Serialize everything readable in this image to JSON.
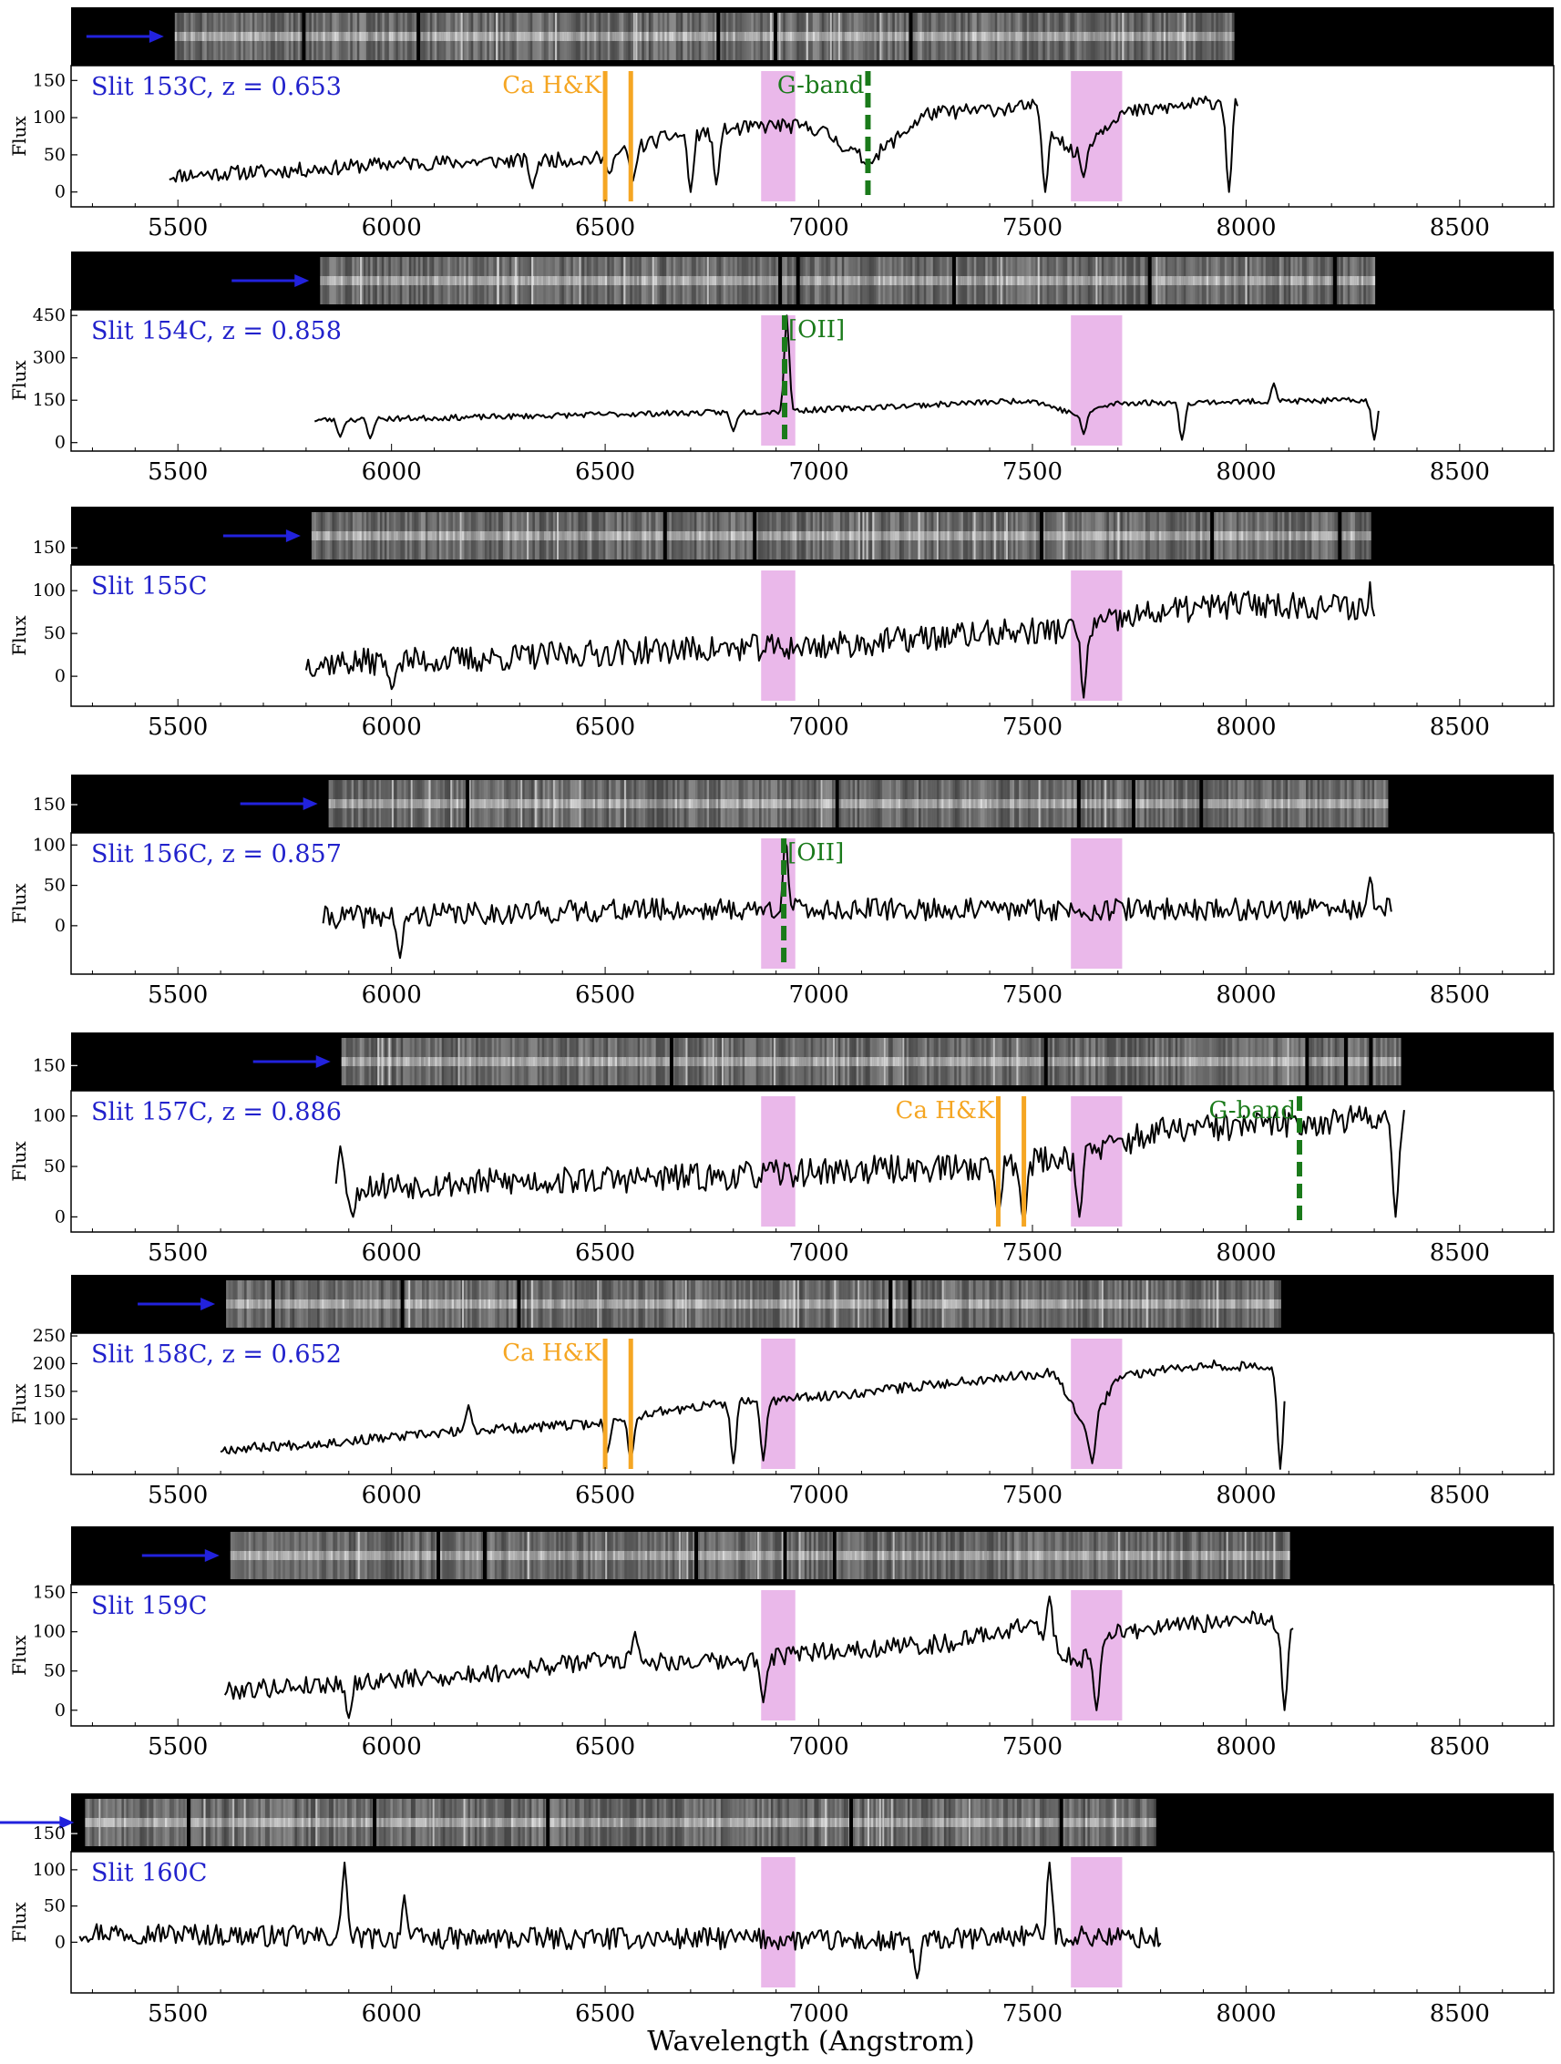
{
  "figure": {
    "xlabel": "Wavelength (Angstrom)",
    "ylabel": "Flux",
    "x_ticks": [
      5500,
      6000,
      6500,
      7000,
      7500,
      8000,
      8500
    ],
    "x_range": [
      5250,
      8720
    ],
    "shaded_regions": [
      [
        6865,
        6945
      ],
      [
        7590,
        7710
      ]
    ],
    "colors": {
      "shade": "#eab8ea",
      "arrow": "#2222dd",
      "label": "#2222cc",
      "ca_hk": "#f5a623",
      "feature_green": "#1a7a1a",
      "spectrum": "#000000",
      "strip": "#000000"
    }
  },
  "chart_data": [
    {
      "type": "line",
      "label": "Slit 153C, z = 0.653",
      "slit": "153C",
      "z": "0.653",
      "x_min": 5480,
      "x_max": 7980,
      "strip_start": 5480,
      "strip_end": 7980,
      "y_ticks": [
        0,
        50,
        100,
        150
      ],
      "ylim": [
        -20,
        170
      ],
      "ca_hk": [
        6500,
        6560
      ],
      "ca_label": "Ca H&K",
      "feature": {
        "name": "G-band",
        "x": 7115,
        "style": "dashed"
      },
      "anchors": [
        [
          5480,
          22
        ],
        [
          5800,
          30
        ],
        [
          6000,
          38
        ],
        [
          6300,
          42
        ],
        [
          6500,
          45
        ],
        [
          6650,
          75
        ],
        [
          6900,
          90
        ],
        [
          7000,
          85
        ],
        [
          7115,
          40
        ],
        [
          7250,
          105
        ],
        [
          7500,
          115
        ],
        [
          7600,
          50
        ],
        [
          7700,
          105
        ],
        [
          7980,
          125
        ]
      ],
      "dips": [
        [
          6330,
          5
        ],
        [
          6510,
          25
        ],
        [
          6565,
          15
        ],
        [
          6700,
          0
        ],
        [
          6760,
          10
        ],
        [
          7120,
          40
        ],
        [
          7530,
          0
        ],
        [
          7620,
          20
        ],
        [
          7960,
          0
        ]
      ],
      "peaks": [],
      "noise": 10,
      "seed": 11
    },
    {
      "type": "line",
      "label": "Slit 154C, z = 0.858",
      "slit": "154C",
      "z": "0.858",
      "x_min": 5820,
      "x_max": 8310,
      "strip_start": 5820,
      "strip_end": 8310,
      "y_ticks": [
        0,
        150,
        300,
        450
      ],
      "ylim": [
        -30,
        470
      ],
      "ca_hk": [],
      "ca_label": "",
      "feature": {
        "name": "[OII]",
        "x": 6920,
        "style": "dashed"
      },
      "anchors": [
        [
          5820,
          80
        ],
        [
          6200,
          90
        ],
        [
          6500,
          100
        ],
        [
          6900,
          110
        ],
        [
          7200,
          130
        ],
        [
          7500,
          150
        ],
        [
          7600,
          100
        ],
        [
          7700,
          140
        ],
        [
          8000,
          145
        ],
        [
          8310,
          150
        ]
      ],
      "dips": [
        [
          5880,
          20
        ],
        [
          5950,
          15
        ],
        [
          6800,
          40
        ],
        [
          7620,
          30
        ],
        [
          7850,
          10
        ],
        [
          8300,
          10
        ]
      ],
      "peaks": [
        [
          6925,
          450
        ],
        [
          8065,
          210
        ]
      ],
      "noise": 10,
      "seed": 23
    },
    {
      "type": "line",
      "label": "Slit 155C",
      "slit": "155C",
      "z": "",
      "x_min": 5800,
      "x_max": 8300,
      "strip_start": 5800,
      "strip_end": 8300,
      "y_ticks": [
        0,
        50,
        100,
        150
      ],
      "ylim": [
        -35,
        130
      ],
      "ca_hk": [],
      "ca_label": "",
      "feature": null,
      "anchors": [
        [
          5800,
          15
        ],
        [
          6200,
          20
        ],
        [
          6600,
          30
        ],
        [
          7000,
          35
        ],
        [
          7400,
          50
        ],
        [
          7600,
          55
        ],
        [
          7800,
          75
        ],
        [
          8000,
          85
        ],
        [
          8300,
          80
        ]
      ],
      "dips": [
        [
          6000,
          -15
        ],
        [
          7620,
          -25
        ],
        [
          8290,
          0
        ]
      ],
      "peaks": [
        [
          8290,
          110
        ]
      ],
      "noise": 16,
      "seed": 37
    },
    {
      "type": "line",
      "label": "Slit 156C, z = 0.857",
      "slit": "156C",
      "z": "0.857",
      "x_min": 5840,
      "x_max": 8340,
      "strip_start": 5840,
      "strip_end": 8340,
      "y_ticks": [
        0,
        50,
        100,
        150
      ],
      "ylim": [
        -60,
        115
      ],
      "ca_hk": [],
      "ca_label": "",
      "feature": {
        "name": "[OII]",
        "x": 6918,
        "style": "dashed"
      },
      "anchors": [
        [
          5840,
          10
        ],
        [
          6200,
          15
        ],
        [
          6600,
          20
        ],
        [
          7000,
          20
        ],
        [
          7400,
          20
        ],
        [
          7800,
          20
        ],
        [
          8340,
          20
        ]
      ],
      "dips": [
        [
          6020,
          -40
        ]
      ],
      "peaks": [
        [
          6922,
          110
        ],
        [
          8290,
          60
        ]
      ],
      "noise": 14,
      "seed": 41
    },
    {
      "type": "line",
      "label": "Slit 157C, z = 0.886",
      "slit": "157C",
      "z": "0.886",
      "x_min": 5870,
      "x_max": 8370,
      "strip_start": 5870,
      "strip_end": 8370,
      "y_ticks": [
        0,
        50,
        100,
        150
      ],
      "ylim": [
        -15,
        125
      ],
      "ca_hk": [
        7420,
        7480
      ],
      "ca_label": "Ca H&K",
      "feature": {
        "name": "G-band",
        "x": 8125,
        "style": "dashed"
      },
      "anchors": [
        [
          5870,
          30
        ],
        [
          6300,
          35
        ],
        [
          6800,
          40
        ],
        [
          7000,
          45
        ],
        [
          7400,
          50
        ],
        [
          7600,
          60
        ],
        [
          7800,
          85
        ],
        [
          8000,
          90
        ],
        [
          8370,
          100
        ]
      ],
      "dips": [
        [
          5910,
          0
        ],
        [
          7420,
          0
        ],
        [
          7480,
          -8
        ],
        [
          7610,
          0
        ],
        [
          8350,
          0
        ]
      ],
      "peaks": [
        [
          5880,
          70
        ]
      ],
      "noise": 14,
      "seed": 53
    },
    {
      "type": "line",
      "label": "Slit 158C, z = 0.652",
      "slit": "158C",
      "z": "0.652",
      "x_min": 5600,
      "x_max": 8090,
      "strip_start": 5600,
      "strip_end": 8090,
      "y_ticks": [
        100,
        150,
        200,
        250
      ],
      "ylim": [
        0,
        255
      ],
      "ca_hk": [
        6500,
        6560
      ],
      "ca_label": "Ca H&K",
      "feature": null,
      "anchors": [
        [
          5600,
          45
        ],
        [
          5900,
          60
        ],
        [
          6200,
          80
        ],
        [
          6450,
          90
        ],
        [
          6600,
          110
        ],
        [
          6800,
          130
        ],
        [
          7000,
          140
        ],
        [
          7300,
          165
        ],
        [
          7550,
          185
        ],
        [
          7630,
          80
        ],
        [
          7700,
          175
        ],
        [
          7900,
          200
        ],
        [
          8060,
          190
        ]
      ],
      "dips": [
        [
          6505,
          40
        ],
        [
          6560,
          25
        ],
        [
          6800,
          20
        ],
        [
          6870,
          25
        ],
        [
          7640,
          20
        ],
        [
          8080,
          10
        ]
      ],
      "peaks": [
        [
          6180,
          125
        ]
      ],
      "noise": 9,
      "seed": 67
    },
    {
      "type": "line",
      "label": "Slit 159C",
      "slit": "159C",
      "z": "",
      "x_min": 5610,
      "x_max": 8110,
      "strip_start": 5610,
      "strip_end": 8110,
      "y_ticks": [
        0,
        50,
        100,
        150
      ],
      "ylim": [
        -20,
        160
      ],
      "ca_hk": [],
      "ca_label": "",
      "feature": null,
      "anchors": [
        [
          5610,
          25
        ],
        [
          5900,
          35
        ],
        [
          6200,
          45
        ],
        [
          6500,
          65
        ],
        [
          6800,
          60
        ],
        [
          7000,
          75
        ],
        [
          7300,
          85
        ],
        [
          7500,
          110
        ],
        [
          7600,
          60
        ],
        [
          7700,
          100
        ],
        [
          8000,
          115
        ],
        [
          8100,
          110
        ]
      ],
      "dips": [
        [
          5900,
          -10
        ],
        [
          6870,
          10
        ],
        [
          7650,
          0
        ],
        [
          8090,
          0
        ]
      ],
      "peaks": [
        [
          6570,
          100
        ],
        [
          7540,
          145
        ]
      ],
      "noise": 12,
      "seed": 79
    },
    {
      "type": "line",
      "label": "Slit 160C",
      "slit": "160C",
      "z": "",
      "x_min": 5270,
      "x_max": 7800,
      "strip_start": 5270,
      "strip_end": 7800,
      "y_ticks": [
        0,
        50,
        100,
        150
      ],
      "ylim": [
        -70,
        125
      ],
      "ca_hk": [],
      "ca_label": "",
      "feature": null,
      "anchors": [
        [
          5270,
          15
        ],
        [
          5600,
          10
        ],
        [
          6000,
          5
        ],
        [
          6400,
          5
        ],
        [
          6800,
          5
        ],
        [
          7200,
          0
        ],
        [
          7500,
          10
        ],
        [
          7800,
          5
        ]
      ],
      "dips": [
        [
          7230,
          -50
        ]
      ],
      "peaks": [
        [
          5890,
          110
        ],
        [
          6030,
          65
        ],
        [
          7540,
          110
        ]
      ],
      "noise": 15,
      "seed": 97
    }
  ]
}
